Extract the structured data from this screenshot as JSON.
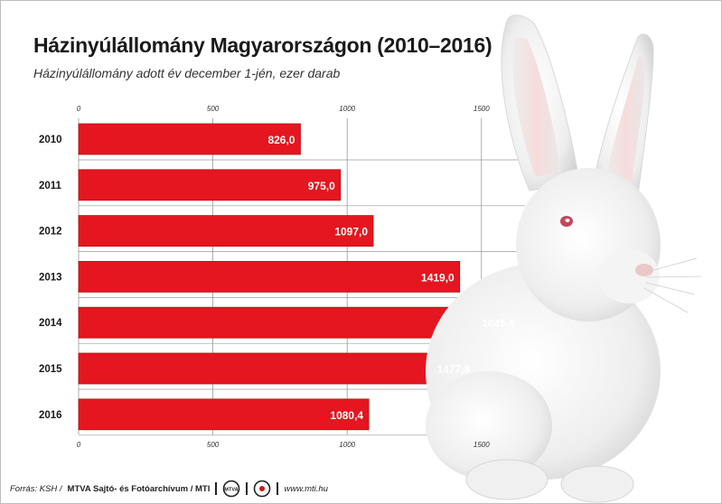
{
  "header": {
    "title": "Házinyúlállomány Magyarországon (2010–2016)",
    "subtitle": "Házinyúlállomány adott év december 1-jén, ezer darab"
  },
  "footer": {
    "source": "Forrás: KSH /",
    "agency": "MTVA Sajtó- és Fotóarchívum / MTI",
    "logo_mtva_text": "MTVA",
    "website": "www.mti.hu",
    "bar_color": "#e4161f"
  },
  "chart_data": {
    "type": "bar",
    "orientation": "horizontal",
    "categories": [
      "2010",
      "2011",
      "2012",
      "2013",
      "2014",
      "2015",
      "2016"
    ],
    "values": [
      826.0,
      975.0,
      1097.0,
      1419.0,
      1645.0,
      1477.8,
      1080.4
    ],
    "value_labels": [
      "826,0",
      "975,0",
      "1097,0",
      "1419,0",
      "1645,0",
      "1477,8",
      "1080,4"
    ],
    "title": "Házinyúlállomány Magyarországon (2010–2016)",
    "subtitle": "Házinyúlállomány adott év december 1-jén, ezer darab",
    "xlim": [
      0,
      1500
    ],
    "x_ticks": [
      "0",
      "500",
      "1000",
      "1500"
    ],
    "x_tick_values": [
      0,
      500,
      1000,
      1500
    ],
    "grid": true,
    "color": "#e4161f"
  }
}
